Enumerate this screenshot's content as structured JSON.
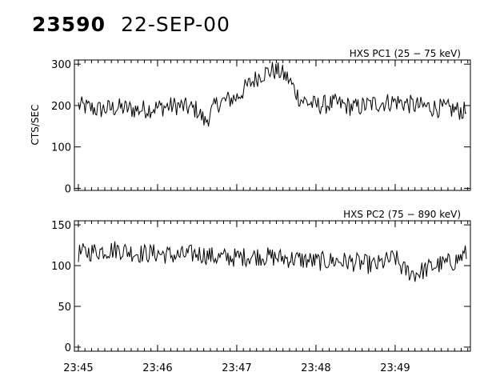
{
  "header": {
    "event_id": "23590",
    "date": "22-SEP-00"
  },
  "chart_data": [
    {
      "type": "line",
      "title": "HXS PC1 (25 − 75 keV)",
      "ylabel": "CTS/SEC",
      "xlabel": "",
      "x_ticks": [
        "23:45",
        "23:46",
        "23:47",
        "23:48",
        "23:49"
      ],
      "x_tick_values_min": [
        0,
        1,
        2,
        3,
        4
      ],
      "xlim_min": [
        -0.05,
        4.95
      ],
      "ylim": [
        -5,
        310
      ],
      "y_ticks": [
        0,
        100,
        200,
        300
      ],
      "series": [
        {
          "x_min": [
            0,
            0.25,
            0.5,
            0.75,
            1,
            1.25,
            1.5,
            1.6,
            1.75,
            2,
            2.15,
            2.3,
            2.45,
            2.55,
            2.65,
            2.8,
            3,
            3.25,
            3.5,
            3.75,
            4,
            4.25,
            4.5,
            4.75,
            4.9
          ],
          "values": [
            200,
            190,
            195,
            190,
            195,
            200,
            190,
            160,
            205,
            220,
            250,
            275,
            285,
            280,
            265,
            215,
            200,
            205,
            195,
            205,
            210,
            200,
            195,
            190,
            185
          ],
          "line_color": "#000000"
        }
      ]
    },
    {
      "type": "line",
      "title": "HXS PC2 (75 − 890 keV)",
      "ylabel": "",
      "xlabel": "",
      "x_ticks": [
        "23:45",
        "23:46",
        "23:47",
        "23:48",
        "23:49"
      ],
      "x_tick_values_min": [
        0,
        1,
        2,
        3,
        4
      ],
      "xlim_min": [
        -0.05,
        4.95
      ],
      "ylim": [
        -5,
        155
      ],
      "y_ticks": [
        0,
        50,
        100,
        150
      ],
      "series": [
        {
          "x_min": [
            0,
            0.25,
            0.5,
            0.75,
            1,
            1.25,
            1.5,
            1.75,
            2,
            2.25,
            2.5,
            2.75,
            3,
            3.25,
            3.5,
            3.75,
            4,
            4.1,
            4.25,
            4.5,
            4.75,
            4.9
          ],
          "values": [
            115,
            118,
            120,
            115,
            115,
            112,
            115,
            110,
            110,
            112,
            110,
            108,
            105,
            106,
            104,
            100,
            110,
            95,
            90,
            100,
            105,
            115
          ],
          "line_color": "#000000"
        }
      ]
    }
  ]
}
